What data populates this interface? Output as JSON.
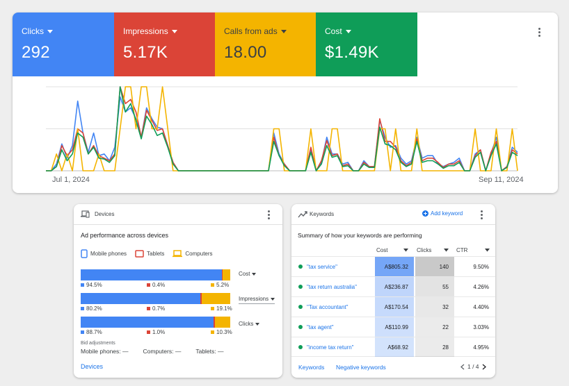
{
  "colors": {
    "blue": "#4285f4",
    "red": "#db4437",
    "yellow": "#f4b400",
    "green": "#0f9d58",
    "link": "#1a73e8"
  },
  "performance": {
    "tiles": [
      {
        "label": "Clicks",
        "value": "292",
        "color": "#4285f4"
      },
      {
        "label": "Impressions",
        "value": "5.17K",
        "color": "#db4437"
      },
      {
        "label": "Calls from ads",
        "value": "18.00",
        "color": "#f4b400"
      },
      {
        "label": "Cost",
        "value": "$1.49K",
        "color": "#0f9d58"
      }
    ],
    "date_start": "Jul 1, 2024",
    "date_end": "Sep 11, 2024",
    "more_icon": "more-vert-icon"
  },
  "chart_data": {
    "type": "line",
    "x_start": "Jul 1, 2024",
    "x_end": "Sep 11, 2024",
    "ylim": [
      0,
      100
    ],
    "grid": true,
    "series": [
      {
        "color": "#4285f4",
        "values": [
          0,
          0,
          8,
          32,
          15,
          30,
          83,
          45,
          22,
          45,
          18,
          20,
          12,
          28,
          88,
          70,
          75,
          62,
          40,
          75,
          62,
          52,
          50,
          30,
          10,
          0,
          0,
          0,
          0,
          0,
          0,
          0,
          0,
          0,
          0,
          0,
          0,
          0,
          0,
          0,
          0,
          0,
          0,
          45,
          20,
          8,
          0,
          0,
          0,
          0,
          25,
          0,
          10,
          40,
          20,
          20,
          8,
          10,
          0,
          0,
          12,
          5,
          5,
          60,
          40,
          28,
          30,
          15,
          8,
          12,
          40,
          15,
          18,
          18,
          8,
          5,
          8,
          10,
          15,
          0,
          0,
          20,
          25,
          0,
          20,
          40,
          0,
          5,
          28,
          22
        ]
      },
      {
        "color": "#db4437",
        "values": [
          0,
          0,
          5,
          30,
          18,
          25,
          50,
          45,
          20,
          30,
          18,
          15,
          12,
          20,
          100,
          80,
          85,
          70,
          40,
          72,
          60,
          48,
          50,
          30,
          10,
          0,
          0,
          0,
          0,
          0,
          0,
          0,
          0,
          0,
          0,
          0,
          0,
          0,
          0,
          0,
          0,
          0,
          0,
          40,
          18,
          8,
          0,
          0,
          0,
          0,
          28,
          0,
          12,
          36,
          18,
          20,
          6,
          8,
          0,
          0,
          10,
          5,
          5,
          62,
          35,
          35,
          28,
          12,
          6,
          10,
          38,
          12,
          15,
          15,
          10,
          4,
          8,
          8,
          12,
          0,
          0,
          18,
          25,
          0,
          22,
          35,
          0,
          5,
          25,
          20
        ]
      },
      {
        "color": "#f4b400",
        "values": [
          0,
          0,
          20,
          0,
          20,
          0,
          50,
          0,
          0,
          0,
          20,
          0,
          0,
          0,
          50,
          100,
          100,
          50,
          100,
          100,
          50,
          50,
          100,
          50,
          0,
          0,
          0,
          0,
          0,
          0,
          0,
          0,
          0,
          0,
          0,
          0,
          0,
          0,
          0,
          0,
          0,
          0,
          0,
          50,
          50,
          0,
          0,
          0,
          0,
          0,
          50,
          0,
          0,
          0,
          50,
          50,
          0,
          0,
          0,
          0,
          0,
          0,
          0,
          50,
          50,
          0,
          50,
          0,
          0,
          0,
          50,
          0,
          0,
          0,
          0,
          0,
          0,
          0,
          0,
          0,
          0,
          50,
          0,
          0,
          0,
          50,
          0,
          0,
          50,
          0
        ]
      },
      {
        "color": "#0f9d58",
        "values": [
          0,
          0,
          5,
          25,
          12,
          20,
          45,
          40,
          20,
          28,
          15,
          14,
          10,
          18,
          100,
          70,
          80,
          60,
          38,
          65,
          55,
          42,
          45,
          28,
          8,
          0,
          0,
          0,
          0,
          0,
          0,
          0,
          0,
          0,
          0,
          0,
          0,
          0,
          0,
          0,
          0,
          0,
          0,
          35,
          18,
          6,
          0,
          0,
          0,
          0,
          22,
          0,
          8,
          30,
          16,
          18,
          5,
          6,
          0,
          0,
          8,
          4,
          4,
          52,
          32,
          30,
          25,
          10,
          5,
          8,
          35,
          10,
          12,
          12,
          8,
          3,
          6,
          6,
          10,
          0,
          0,
          16,
          22,
          0,
          18,
          32,
          0,
          4,
          22,
          18
        ]
      }
    ]
  },
  "devices": {
    "title": "Devices",
    "subtitle": "Ad performance across devices",
    "legend": [
      "Mobile phones",
      "Tablets",
      "Computers"
    ],
    "rows": [
      {
        "metric": "Cost",
        "mobile": 94.5,
        "tablet": 0.4,
        "computer": 5.2,
        "mobile_label": "94.5%",
        "tablet_label": "0.4%",
        "computer_label": "5.2%"
      },
      {
        "metric": "Impressions",
        "mobile": 80.2,
        "tablet": 0.7,
        "computer": 19.1,
        "mobile_label": "80.2%",
        "tablet_label": "0.7%",
        "computer_label": "19.1%"
      },
      {
        "metric": "Clicks",
        "mobile": 88.7,
        "tablet": 1.0,
        "computer": 10.3,
        "mobile_label": "88.7%",
        "tablet_label": "1.0%",
        "computer_label": "10.3%"
      }
    ],
    "bid_title": "Bid adjustments",
    "bids": [
      {
        "label": "Mobile phones:",
        "value": "—"
      },
      {
        "label": "Computers:",
        "value": "—"
      },
      {
        "label": "Tablets:",
        "value": "—"
      }
    ],
    "footer_link": "Devices"
  },
  "keywords": {
    "title": "Keywords",
    "add_label": "Add keyword",
    "subtitle": "Summary of how your keywords are performing",
    "columns": [
      "Cost",
      "Clicks",
      "CTR"
    ],
    "rows": [
      {
        "keyword": "\"tax service\"",
        "cost": "A$805.32",
        "clicks": "140",
        "ctr": "9.50%",
        "cost_v": 805.32,
        "clicks_v": 140
      },
      {
        "keyword": "\"tax return australia\"",
        "cost": "A$236.87",
        "clicks": "55",
        "ctr": "4.26%",
        "cost_v": 236.87,
        "clicks_v": 55
      },
      {
        "keyword": "\"Tax accountant\"",
        "cost": "A$170.54",
        "clicks": "32",
        "ctr": "4.40%",
        "cost_v": 170.54,
        "clicks_v": 32
      },
      {
        "keyword": "\"tax agent\"",
        "cost": "A$110.99",
        "clicks": "22",
        "ctr": "3.03%",
        "cost_v": 110.99,
        "clicks_v": 22
      },
      {
        "keyword": "\"income tax return\"",
        "cost": "A$68.92",
        "clicks": "28",
        "ctr": "4.95%",
        "cost_v": 68.92,
        "clicks_v": 28
      }
    ],
    "footer_keywords": "Keywords",
    "footer_negative": "Negative keywords",
    "pagination": "1 / 4"
  }
}
